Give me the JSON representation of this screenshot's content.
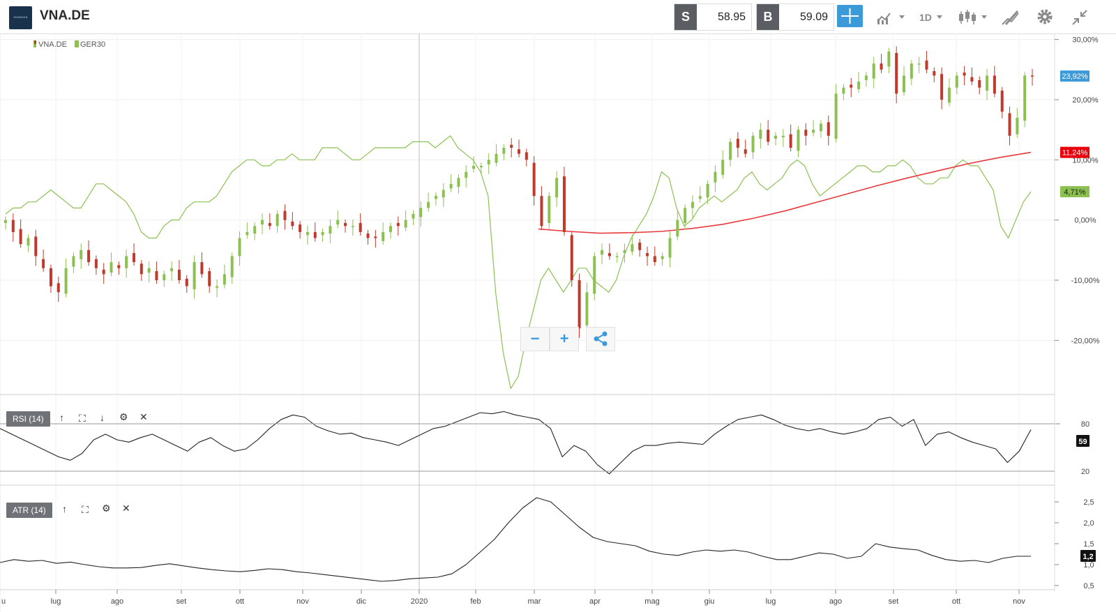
{
  "toolbar": {
    "logo_text": "VONOVIA",
    "symbol": "VNA.DE",
    "sell_label": "S",
    "sell_price": "58.95",
    "buy_label": "B",
    "buy_price": "59.09",
    "timeframe": "1D",
    "icons": [
      "crosshair-icon",
      "compare-icon",
      "timeframe-selector",
      "candle-type-icon",
      "draw-icon",
      "gear-icon",
      "collapse-icon"
    ]
  },
  "legend": [
    {
      "name": "VNA.DE",
      "color": "#c0392b"
    },
    {
      "name": "GER30",
      "color": "#8cc152"
    }
  ],
  "zoom": {
    "minus": "−",
    "plus": "+"
  },
  "panels": {
    "rsi": {
      "label": "RSI (14)",
      "value": "59",
      "levels": [
        "80",
        "20"
      ]
    },
    "atr": {
      "label": "ATR (14)",
      "value": "1,2",
      "ticks": [
        "2,5",
        "2,0",
        "1,5",
        "1,0",
        "0,5"
      ]
    }
  },
  "chart_data": {
    "type": "line",
    "x_labels": [
      "lug",
      "ago",
      "set",
      "ott",
      "nov",
      "dic",
      "2020",
      "feb",
      "mar",
      "apr",
      "mag",
      "giu",
      "lug",
      "ago",
      "set",
      "ott",
      "nov"
    ],
    "x_label_left_fragment": "u",
    "y_ticks": [
      "30,00%",
      "20,00%",
      "10,00%",
      "0,00%",
      "-10,00%",
      "-20,00%"
    ],
    "ylim": [
      -29,
      31
    ],
    "price_badges": {
      "vna": "23,92%",
      "ma": "11,24%",
      "ger30": "4,71%"
    },
    "colors": {
      "up": "#8cc152",
      "down": "#c0392b",
      "ger30": "#8cc152",
      "ma": "#e8393d",
      "rsi": "#222222",
      "atr": "#222222"
    },
    "series": [
      {
        "name": "VNA.DE",
        "type": "candlestick",
        "closes": [
          0,
          -2,
          -4,
          -3,
          -6,
          -8,
          -11,
          -12,
          -8,
          -6,
          -5,
          -7,
          -8,
          -9,
          -7,
          -8,
          -6,
          -7,
          -9,
          -8,
          -10,
          -9,
          -8,
          -10,
          -11,
          -7,
          -9,
          -11,
          -11,
          -9,
          -6,
          -3,
          -2,
          -1,
          0,
          -1,
          1,
          0,
          -1,
          -2,
          -2,
          -3,
          -2,
          -1,
          0,
          -1,
          -1,
          -2,
          -3,
          -3,
          -2,
          -1,
          -1,
          0,
          1,
          2,
          3,
          4,
          5,
          6,
          7,
          8,
          9,
          9,
          10,
          11,
          12,
          12,
          11,
          10,
          4,
          -1,
          4,
          7,
          -2,
          -10,
          -18,
          -12,
          -6,
          -5,
          -6,
          -6,
          -5,
          -4,
          -5,
          -6,
          -7,
          -6,
          -3,
          0,
          2,
          3,
          4,
          6,
          8,
          10,
          13,
          12,
          11,
          14,
          15,
          13,
          14,
          14,
          12,
          15,
          14,
          15,
          16,
          14,
          21,
          22,
          22,
          23,
          24,
          26,
          25,
          28,
          21,
          24,
          26,
          26,
          25,
          24,
          20,
          22,
          24,
          24,
          23,
          22,
          24,
          21,
          18,
          14,
          17,
          24,
          23.92
        ]
      },
      {
        "name": "GER30",
        "type": "line",
        "values": [
          1,
          2,
          2,
          3,
          3,
          4,
          5,
          4,
          3,
          2,
          2,
          4,
          6,
          6,
          5,
          4,
          3,
          1,
          -2,
          -3,
          -3,
          -1,
          0,
          0,
          2,
          3,
          3,
          3,
          4,
          6,
          8,
          9,
          10,
          10,
          9,
          9,
          10,
          10,
          11,
          10,
          10,
          10,
          12,
          12,
          12,
          11,
          10,
          10,
          11,
          12,
          12,
          12,
          12,
          12,
          13,
          13,
          13,
          12,
          13,
          14,
          12,
          11,
          10,
          8,
          4,
          -12,
          -22,
          -28,
          -26,
          -20,
          -15,
          -10,
          -8,
          -10,
          -12,
          -10,
          -8,
          -8,
          -10,
          -11,
          -12,
          -10,
          -6,
          -3,
          -1,
          1,
          4,
          8,
          7,
          2,
          -1,
          0,
          2,
          3,
          4,
          3,
          4,
          5,
          7,
          8,
          6,
          5,
          6,
          7,
          9,
          10,
          9,
          6,
          4,
          5,
          6,
          7,
          8,
          9,
          9,
          8,
          8,
          9,
          9,
          10,
          9,
          7,
          6,
          6,
          7,
          7,
          9,
          10,
          9,
          9,
          7,
          5,
          -1,
          -3,
          0,
          3,
          4.71
        ]
      },
      {
        "name": "MA",
        "type": "line",
        "values": [
          -1.5,
          -1.9,
          -2.2,
          -2.1,
          -1.9,
          -1.4,
          -0.7,
          0.3,
          1.5,
          2.9,
          4.3,
          5.7,
          7.0,
          8.2,
          9.4,
          10.4,
          11.24
        ]
      },
      {
        "name": "RSI (14)",
        "type": "line",
        "ylim": [
          10,
          90
        ],
        "values": [
          60,
          55,
          50,
          45,
          40,
          35,
          32,
          38,
          50,
          55,
          50,
          48,
          52,
          55,
          50,
          45,
          40,
          48,
          52,
          45,
          40,
          42,
          50,
          60,
          68,
          72,
          70,
          62,
          58,
          55,
          56,
          52,
          50,
          48,
          45,
          50,
          55,
          60,
          62,
          66,
          70,
          74,
          73,
          75,
          72,
          70,
          68,
          60,
          35,
          45,
          40,
          28,
          20,
          30,
          40,
          45,
          45,
          47,
          48,
          47,
          46,
          55,
          62,
          68,
          70,
          72,
          68,
          63,
          60,
          58,
          60,
          57,
          55,
          57,
          60,
          68,
          70,
          62,
          68,
          45,
          55,
          57,
          52,
          48,
          45,
          42,
          30,
          40,
          59
        ]
      },
      {
        "name": "ATR (14)",
        "type": "line",
        "ylim": [
          0.4,
          2.7
        ],
        "values": [
          1.05,
          1.12,
          1.08,
          1.1,
          1.03,
          1.06,
          1.0,
          0.95,
          0.92,
          0.92,
          0.93,
          0.98,
          1.02,
          0.97,
          0.92,
          0.88,
          0.85,
          0.83,
          0.86,
          0.9,
          0.88,
          0.83,
          0.8,
          0.76,
          0.72,
          0.68,
          0.64,
          0.6,
          0.62,
          0.66,
          0.68,
          0.7,
          0.78,
          1.0,
          1.3,
          1.6,
          2.0,
          2.35,
          2.6,
          2.5,
          2.2,
          1.9,
          1.65,
          1.55,
          1.5,
          1.45,
          1.32,
          1.25,
          1.22,
          1.3,
          1.35,
          1.32,
          1.35,
          1.3,
          1.2,
          1.12,
          1.12,
          1.2,
          1.28,
          1.25,
          1.15,
          1.2,
          1.5,
          1.42,
          1.38,
          1.35,
          1.22,
          1.12,
          1.08,
          1.1,
          1.05,
          1.15,
          1.2,
          1.2
        ]
      }
    ]
  }
}
